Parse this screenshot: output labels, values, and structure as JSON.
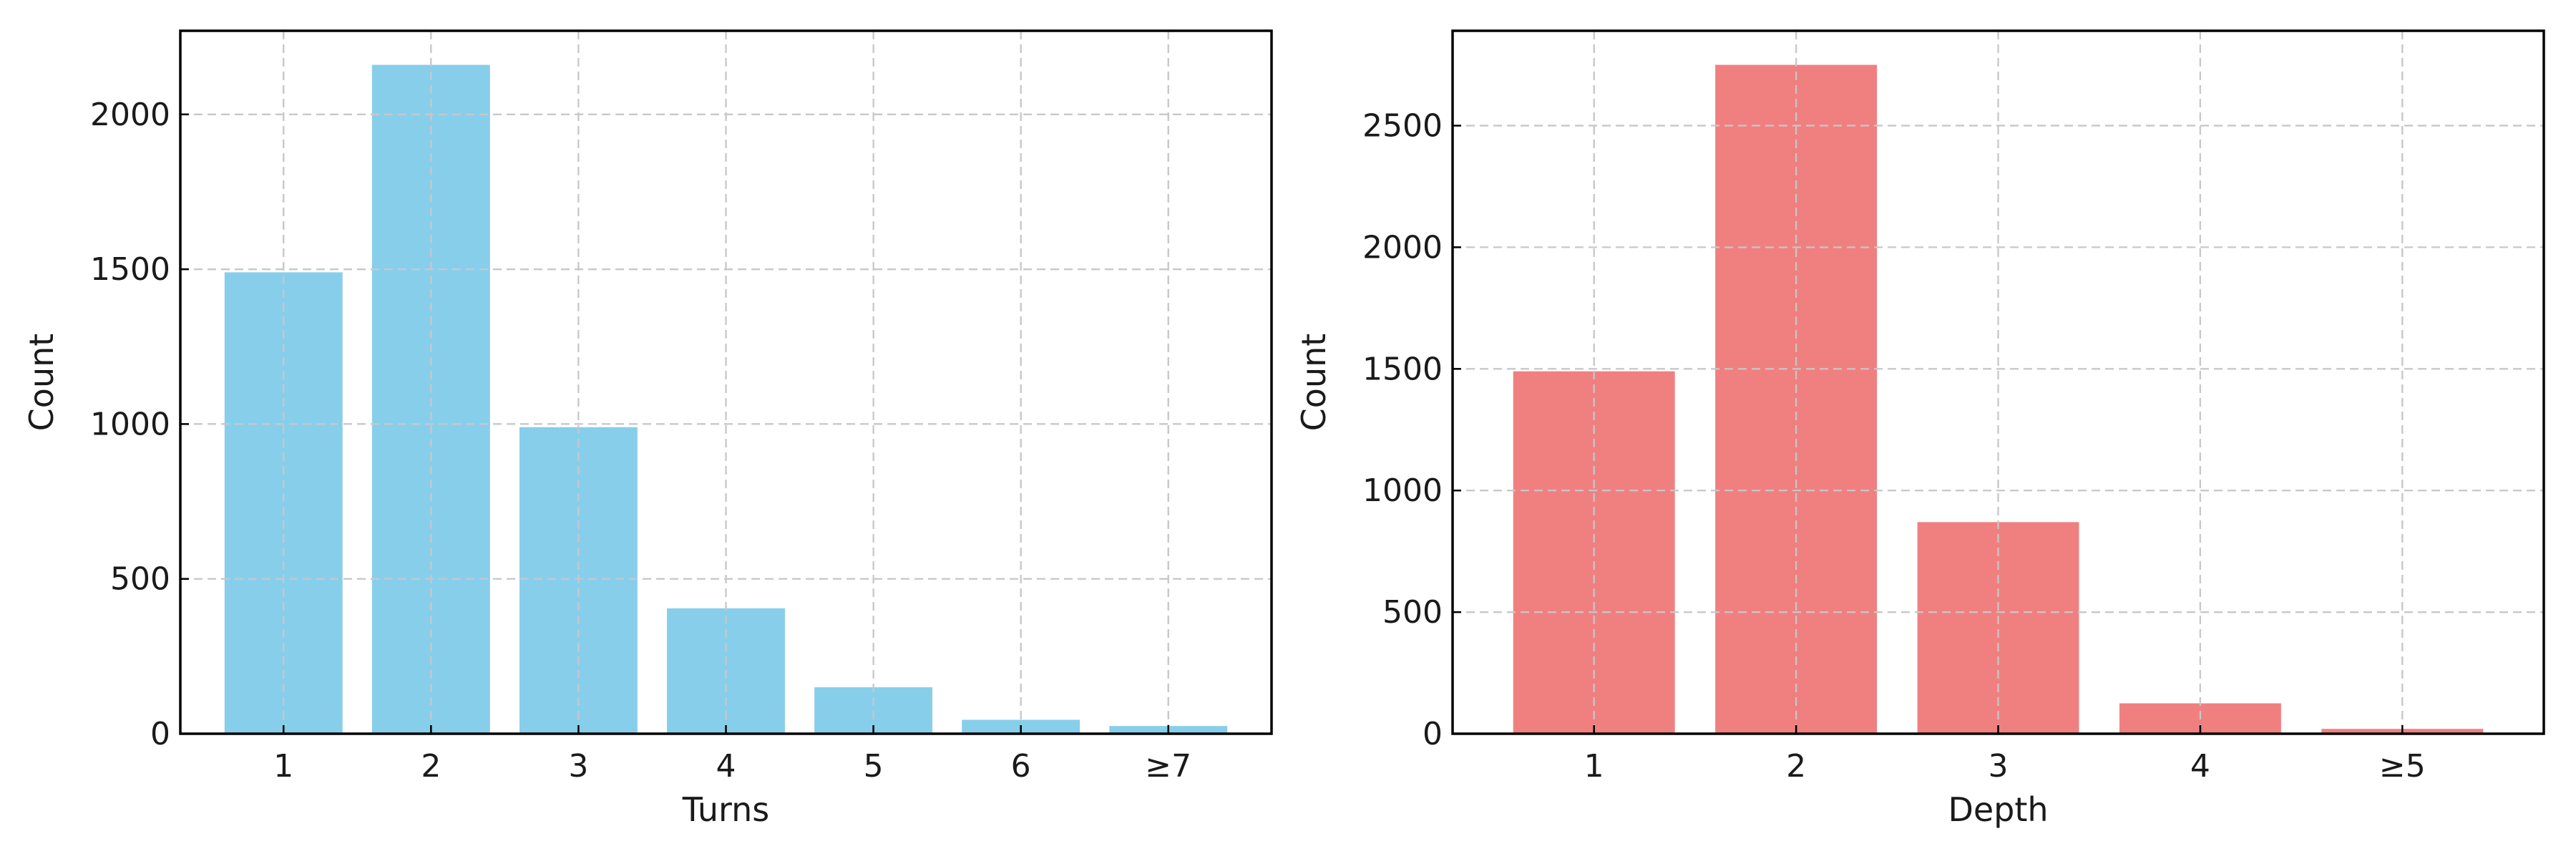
{
  "chart_data": [
    {
      "type": "bar",
      "categories": [
        "1",
        "2",
        "3",
        "4",
        "5",
        "6",
        "≥7"
      ],
      "values": [
        1490,
        2160,
        990,
        405,
        150,
        45,
        25
      ],
      "xlabel": "Turns",
      "ylabel": "Count",
      "ylim": [
        0,
        2270
      ],
      "yticks": [
        0,
        500,
        1000,
        1500,
        2000
      ],
      "bar_color": "#87CEEB",
      "grid": true,
      "legend": "none"
    },
    {
      "type": "bar",
      "categories": [
        "1",
        "2",
        "3",
        "4",
        "≥5"
      ],
      "values": [
        1490,
        2750,
        870,
        125,
        20
      ],
      "xlabel": "Depth",
      "ylabel": "Count",
      "ylim": [
        0,
        2890
      ],
      "yticks": [
        0,
        500,
        1000,
        1500,
        2000,
        2500
      ],
      "bar_color": "#F08080",
      "grid": true,
      "legend": "none"
    }
  ]
}
